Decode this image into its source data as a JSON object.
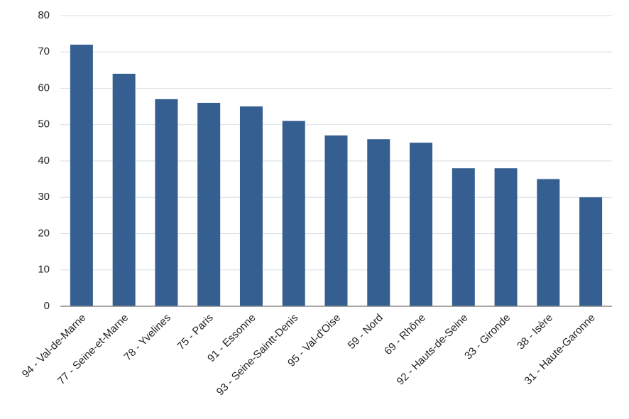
{
  "chart_data": {
    "type": "bar",
    "categories": [
      "94 - Val-de-Marne",
      "77 - Seine-et-Marne",
      "78 - Yvelines",
      "75 - Paris",
      "91 - Essonne",
      "93 - Seine-Saintt-Denis",
      "95 - Val-d'Oise",
      "59 - Nord",
      "69 - Rhône",
      "92 - Hauts-de-Seine",
      "33 - Gironde",
      "38 - Isère",
      "31 - Haute-Garonne"
    ],
    "values": [
      72,
      64,
      57,
      56,
      55,
      51,
      47,
      46,
      45,
      38,
      38,
      35,
      30
    ],
    "color": "#355f91",
    "ylim": [
      0,
      80
    ],
    "yticks": [
      0,
      10,
      20,
      30,
      40,
      50,
      60,
      70,
      80
    ],
    "grid": true
  }
}
